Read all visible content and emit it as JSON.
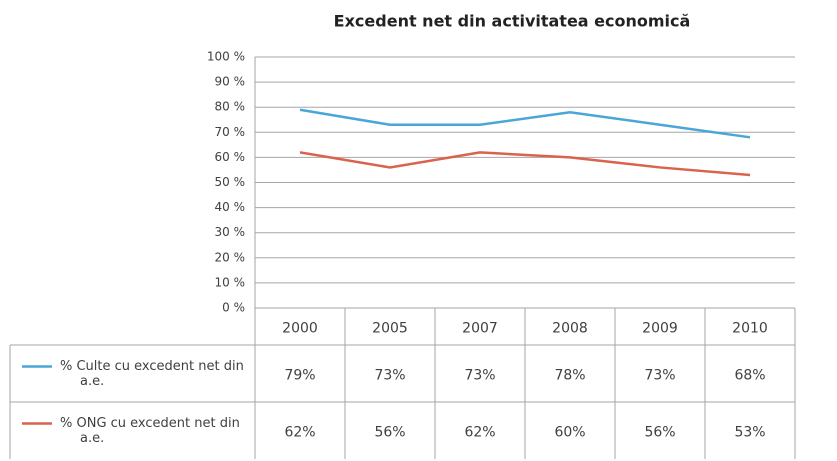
{
  "chart_data": {
    "type": "line",
    "title": "Excedent net din activitatea economică",
    "categories": [
      "2000",
      "2005",
      "2007",
      "2008",
      "2009",
      "2010"
    ],
    "series": [
      {
        "name": "% Culte cu  excedent net din a.e.",
        "color": "#4ba5d8",
        "values": [
          79,
          73,
          73,
          78,
          73,
          68
        ],
        "value_labels": [
          "79%",
          "73%",
          "73%",
          "78%",
          "73%",
          "68%"
        ]
      },
      {
        "name": "% ONG cu  excedent net din a.e.",
        "color": "#d9634c",
        "values": [
          62,
          56,
          62,
          60,
          56,
          53
        ],
        "value_labels": [
          "62%",
          "56%",
          "62%",
          "60%",
          "56%",
          "53%"
        ]
      }
    ],
    "ylim": [
      0,
      100
    ],
    "yticks": [
      {
        "value": 0,
        "label": "0 %"
      },
      {
        "value": 10,
        "label": "10 %"
      },
      {
        "value": 20,
        "label": "20 %"
      },
      {
        "value": 30,
        "label": "30 %"
      },
      {
        "value": 40,
        "label": "40 %"
      },
      {
        "value": 50,
        "label": "50 %"
      },
      {
        "value": 60,
        "label": "60 %"
      },
      {
        "value": 70,
        "label": "70 %"
      },
      {
        "value": 80,
        "label": "80 %"
      },
      {
        "value": 90,
        "label": "90 %"
      },
      {
        "value": 100,
        "label": "100 %"
      }
    ],
    "grid": true
  }
}
